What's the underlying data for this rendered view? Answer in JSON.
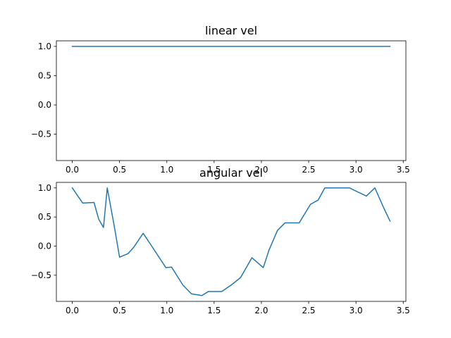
{
  "chart_data": [
    {
      "type": "line",
      "title": "linear vel",
      "xlim": [
        -0.168,
        3.528
      ],
      "ylim": [
        -0.95,
        1.095
      ],
      "xticks": [
        0.0,
        0.5,
        1.0,
        1.5,
        2.0,
        2.5,
        3.0,
        3.5
      ],
      "xtick_labels": [
        "0.0",
        "0.5",
        "1.0",
        "1.5",
        "2.0",
        "2.5",
        "3.0",
        "3.5"
      ],
      "yticks": [
        1.0,
        0.5,
        0.0,
        -0.5
      ],
      "ytick_labels": [
        "1.0",
        "0.5",
        "0.0",
        "−0.5"
      ],
      "grid": false,
      "color": "#1f77b4",
      "series": [
        {
          "x": [
            0.0,
            3.36
          ],
          "y": [
            1.0,
            1.0
          ]
        }
      ]
    },
    {
      "type": "line",
      "title": "angular vel",
      "xlim": [
        -0.168,
        3.528
      ],
      "ylim": [
        -0.95,
        1.095
      ],
      "xticks": [
        0.0,
        0.5,
        1.0,
        1.5,
        2.0,
        2.5,
        3.0,
        3.5
      ],
      "xtick_labels": [
        "0.0",
        "0.5",
        "1.0",
        "1.5",
        "2.0",
        "2.5",
        "3.0",
        "3.5"
      ],
      "yticks": [
        1.0,
        0.5,
        0.0,
        -0.5
      ],
      "ytick_labels": [
        "1.0",
        "0.5",
        "0.0",
        "−0.5"
      ],
      "grid": false,
      "color": "#1f77b4",
      "series": [
        {
          "x": [
            0.0,
            0.11,
            0.23,
            0.28,
            0.33,
            0.37,
            0.44,
            0.5,
            0.59,
            0.65,
            0.75,
            0.84,
            0.99,
            1.05,
            1.17,
            1.26,
            1.37,
            1.44,
            1.58,
            1.68,
            1.78,
            1.9,
            2.02,
            2.08,
            2.17,
            2.25,
            2.4,
            2.52,
            2.6,
            2.67,
            2.74,
            2.93,
            3.11,
            3.2,
            3.29,
            3.36
          ],
          "y": [
            1.0,
            0.74,
            0.75,
            0.46,
            0.32,
            1.0,
            0.38,
            -0.19,
            -0.13,
            -0.02,
            0.22,
            0.0,
            -0.37,
            -0.36,
            -0.67,
            -0.82,
            -0.85,
            -0.78,
            -0.78,
            -0.67,
            -0.54,
            -0.2,
            -0.37,
            -0.07,
            0.27,
            0.4,
            0.4,
            0.72,
            0.79,
            1.0,
            1.0,
            1.0,
            0.86,
            1.0,
            0.67,
            0.43
          ]
        }
      ]
    }
  ]
}
